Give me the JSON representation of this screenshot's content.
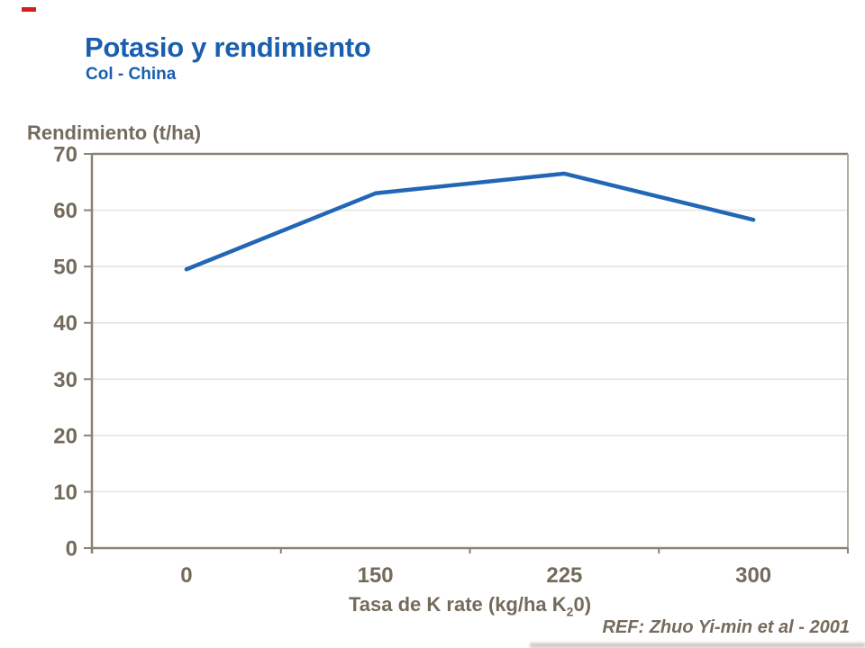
{
  "accent": {
    "dash_color": "#d2201f"
  },
  "header": {
    "title": "Potasio y rendimiento",
    "subtitle": "Col - China"
  },
  "chart_data": {
    "type": "line",
    "title": "Potasio y rendimiento",
    "subtitle": "Col - China",
    "ylabel": "Rendimiento (t/ha)",
    "xlabel": "Tasa de K rate (kg/ha K20)",
    "xlabel_parts": {
      "pre": "Tasa de K rate (kg/ha K",
      "sub": "2",
      "post": "0)"
    },
    "categories": [
      "0",
      "150",
      "225",
      "300"
    ],
    "values": [
      49.5,
      63,
      66.5,
      58.3
    ],
    "yticks": [
      0,
      10,
      20,
      30,
      40,
      50,
      60,
      70
    ],
    "ylim": [
      0,
      70
    ],
    "grid": "horizontal",
    "legend_position": "none",
    "colors": {
      "line": "#2267b5",
      "axis": "#8a8173",
      "grid": "#e4e2dd",
      "frame_right": "#b2ab9f",
      "text": "#746b5c",
      "title": "#1a5fae"
    }
  },
  "footer": {
    "ref": "REF: Zhuo Yi-min et al - 2001"
  }
}
